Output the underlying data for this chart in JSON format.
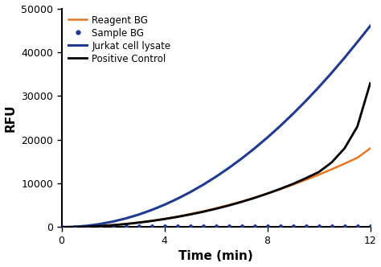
{
  "title": "",
  "xlabel": "Time (min)",
  "ylabel": "RFU",
  "xlim": [
    0,
    12
  ],
  "ylim": [
    0,
    50000
  ],
  "xticks": [
    0,
    4,
    8,
    12
  ],
  "yticks": [
    0,
    10000,
    20000,
    30000,
    40000,
    50000
  ],
  "ytick_labels": [
    "0",
    "10000",
    "20000",
    "30000",
    "40000",
    "50000"
  ],
  "series": [
    {
      "label": "Reagent BG",
      "color": "#E87722",
      "linestyle": "-",
      "linewidth": 1.8,
      "marker": null,
      "x": [
        0,
        0.5,
        1,
        1.5,
        2,
        2.5,
        3,
        3.5,
        4,
        4.5,
        5,
        5.5,
        6,
        6.5,
        7,
        7.5,
        8,
        8.5,
        9,
        9.5,
        10,
        10.5,
        11,
        11.5,
        12
      ],
      "y": [
        0,
        30,
        120,
        270,
        480,
        750,
        1080,
        1470,
        1920,
        2430,
        3000,
        3630,
        4320,
        5070,
        5880,
        6750,
        7680,
        8670,
        9720,
        10830,
        12000,
        13230,
        14520,
        15870,
        18000
      ]
    },
    {
      "label": "Sample BG",
      "color": "#1F3A93",
      "linestyle": "none",
      "linewidth": 0,
      "marker": "o",
      "markersize": 3.5,
      "x": [
        0,
        0.5,
        1,
        1.5,
        2,
        2.5,
        3,
        3.5,
        4,
        4.5,
        5,
        5.5,
        6,
        6.5,
        7,
        7.5,
        8,
        8.5,
        9,
        9.5,
        10,
        10.5,
        11,
        11.5,
        12
      ],
      "y": [
        0,
        80,
        120,
        150,
        170,
        180,
        190,
        200,
        210,
        210,
        220,
        220,
        230,
        230,
        230,
        230,
        240,
        240,
        240,
        240,
        250,
        250,
        250,
        260,
        260
      ]
    },
    {
      "label": "Jurkat cell lysate",
      "color": "#1F3A93",
      "linestyle": "-",
      "linewidth": 2.2,
      "marker": null,
      "x": [
        0,
        0.5,
        1,
        1.5,
        2,
        2.5,
        3,
        3.5,
        4,
        4.5,
        5,
        5.5,
        6,
        6.5,
        7,
        7.5,
        8,
        8.5,
        9,
        9.5,
        10,
        10.5,
        11,
        11.5,
        12
      ],
      "y": [
        0,
        80,
        320,
        720,
        1280,
        2000,
        2880,
        3920,
        5120,
        6480,
        8000,
        9680,
        11520,
        13520,
        15680,
        18000,
        20480,
        23120,
        25920,
        28880,
        32000,
        35280,
        38720,
        42320,
        46000
      ]
    },
    {
      "label": "Positive Control",
      "color": "#000000",
      "linestyle": "-",
      "linewidth": 2.0,
      "marker": null,
      "x": [
        0,
        0.5,
        1,
        1.5,
        2,
        2.5,
        3,
        3.5,
        4,
        4.5,
        5,
        5.5,
        6,
        6.5,
        7,
        7.5,
        8,
        8.5,
        9,
        9.5,
        10,
        10.5,
        11,
        11.5,
        12
      ],
      "y": [
        0,
        30,
        115,
        260,
        460,
        720,
        1040,
        1415,
        1850,
        2340,
        2900,
        3510,
        4200,
        4950,
        5780,
        6680,
        7680,
        8750,
        9900,
        11200,
        12600,
        14800,
        18000,
        23000,
        32900
      ]
    }
  ],
  "legend_loc": "upper left",
  "legend_fontsize": 8.5,
  "axis_label_fontsize": 11,
  "tick_fontsize": 9,
  "background_color": "#ffffff",
  "spine_color": "#000000"
}
